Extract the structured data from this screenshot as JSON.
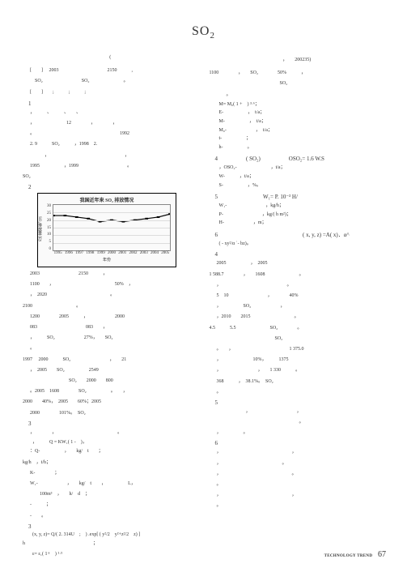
{
  "title_pre": "SO",
  "title_sub": "2",
  "lmeta": "(",
  "rmeta_a": "，　　",
  "rmeta_b": "200235)",
  "l1": "[　　] 　2003　　　　　　　　　　2150　　　,",
  "l2": "　SO₂　　　　　　　　SO₂　　　　　　　。",
  "l3": "[　　]　　;　　　;　　　;　　",
  "lh1": "1",
  "l4": "，　　　、　　　、　　、",
  "l5": "，　　　　　　　12　　　　，　　　　，",
  "l6": "。　　　　　　　　　　　　　　　　　　1992",
  "l7": "2. 9　　　SO₂　　　，1998　2.",
  "l8": "　　　，　　　　　　　　　　　　　　　　，",
  "l9": "1995　　　　　，1999　　　　　　　　　　。",
  "lSO": "SO₂",
  "lh2": "2",
  "chart_title": "我国近年来 SO₂ 排放情况",
  "ylabel": "SO₂排放量/万t",
  "xlabel": "年份",
  "yticks": [
    "30",
    "25",
    "20",
    "15",
    "10",
    "5",
    "0"
  ],
  "xticks": [
    "1995",
    "1996",
    "1997",
    "1998",
    "1999",
    "2000",
    "2001",
    "2002",
    "2003",
    "2004",
    "2005"
  ],
  "values": [
    23,
    23,
    22,
    21,
    19,
    20,
    19,
    20,
    21,
    22,
    24
  ],
  "ymax": 30,
  "line_color": "#000000",
  "grid_color": "#dddddd",
  "l10": "2003　　　　　　　　2150　　　，",
  "l11": "1100　　，　　　　　　　　　　　　　50%　，",
  "l12": "，　2020　　　　　　　　　　　　　。",
  "l13": "2100　　　　　　　　　。",
  "l14": "1200　　　　2005　　　，　　　　　　2000",
  "l15": "083　　　　　　　　　　083　　，",
  "l16": "，　　　SO₂　　　　　　27%，　　SO₂",
  "l17": "。",
  "l18": "1997　 2000　　　SO₂　　　　　　　　，　　21",
  "l19": "，　2005　　SO₂　　　　　2549",
  "l20": "　　　　　　　　SO₂　　2000　　800",
  "l21": "。2005　1608　　　　SO₂　　　　　。　　，",
  "l22": "2000　　40%，　2005　　60%；2005",
  "l23": "2000　　　　101%。　SO₂",
  "lh3": "3",
  "l24": "，　　　　，　　　　　　　　　　　　　。",
  "l25": "，　　　Q = KW₁( 1 -　)，",
  "l26": "：Q-　　　　　，　　kg/　t　　；",
  "l27": "kg/h　，t/h；",
  "l28": "K-　　　　；",
  "l29": "W₁-　　　　　　，　　kg/　t　　，　　　　　L，",
  "l30": "　　100m³　，　　h/　d　；",
  "l31": "-　　　；",
  "l32": "-　　。",
  "lh3b": "3",
  "l33": "(x, y, z)= Q/( 2. 314U　;　) .exp[ ( y²/2　y²+z²/2　z) ]",
  "l34": "h　　　　　　　　　　　　　　；",
  "l35": "ε= ε₁( 1+　) ¹·⁵",
  "r1": "1100　　　　，　　SO₂　　　　50%　　　，",
  "r2": "　　　　　　　　　　　　　SO₂",
  "r3": "　　。",
  "r4": "M= M₀( 1 +　) ³·⁶；",
  "r5": "E-　　　　　，　t/a；",
  "r6": "M-　　　　　，　t/a；",
  "r7": "M₀-　　　　　　，　t/a；",
  "r8": "t-　　　　　；",
  "r9": "h-　　　　　。",
  "rh4": "4　　　　　( SO₂)　　　　　OSO₂= 1.6 W.S",
  "r10": "，OSO₂-　　　　　　　，t/a；",
  "r11": "W-　　　，t/a；",
  "r12": "S-　　　　　，%。",
  "rh5": "5　　　　　　　　W₁= P. 10⁻³ H/",
  "r13": "W₁-　　　　　　　　，kg/h；",
  "r14": "P-　　　　　　　　，kg/( h m²)；",
  "r15": "H-　　　　　　，m；",
  "rh6": "6　　　　　　　　　　　　　　　( x, y, z) =A( x)．α^",
  "r16": "( - xy²/α ˈ- bz)。",
  "rh4b": "4",
  "r17": "2005　　　　　，　2005",
  "r18": "1 588.7　　　　，　　1608　　　　　　　。",
  "r19": "，　　　　　　　　　　　　　　。",
  "r20": "5　10　　　　　　　　，　　　　40%",
  "r21": "，　　　　　SO₂　　　　　　，",
  "r22": "，2010　　2015　　　　　　　　　。",
  "r23": "4.5　　　5.5　　　　　　　SO₂　　　　。",
  "r24": "　　　　　　　　　　　　SO₂",
  "r25": "。　　，　　　　　　　　　　　　1 375.0",
  "r26": "，　　　　　　　10%，　　　1375",
  "r27": "，　　　　　　　　，　　1 330　　　。",
  "r28": "368　　　，　38.1%。　SO₂",
  "r29": "。",
  "rh5b": "5",
  "r30": "　　　　　　，　　　　　　　　　　，",
  "r31": "　　　　　　　　　　　　　　　　　。",
  "r32": "，　　　　　。",
  "rh6b": "6",
  "r33": "，　　　　　　　　　　　　　　　，",
  "r34": "，　　　　　　　　　　　　　。",
  "r35": "，　　　　　　　　　　　　　　　。",
  "r36": "。",
  "r37": "，　　　　　　　　　　　　　　　，",
  "r38": "。",
  "foot_label": "TECHNOLOGY TREND",
  "foot_page": "67"
}
